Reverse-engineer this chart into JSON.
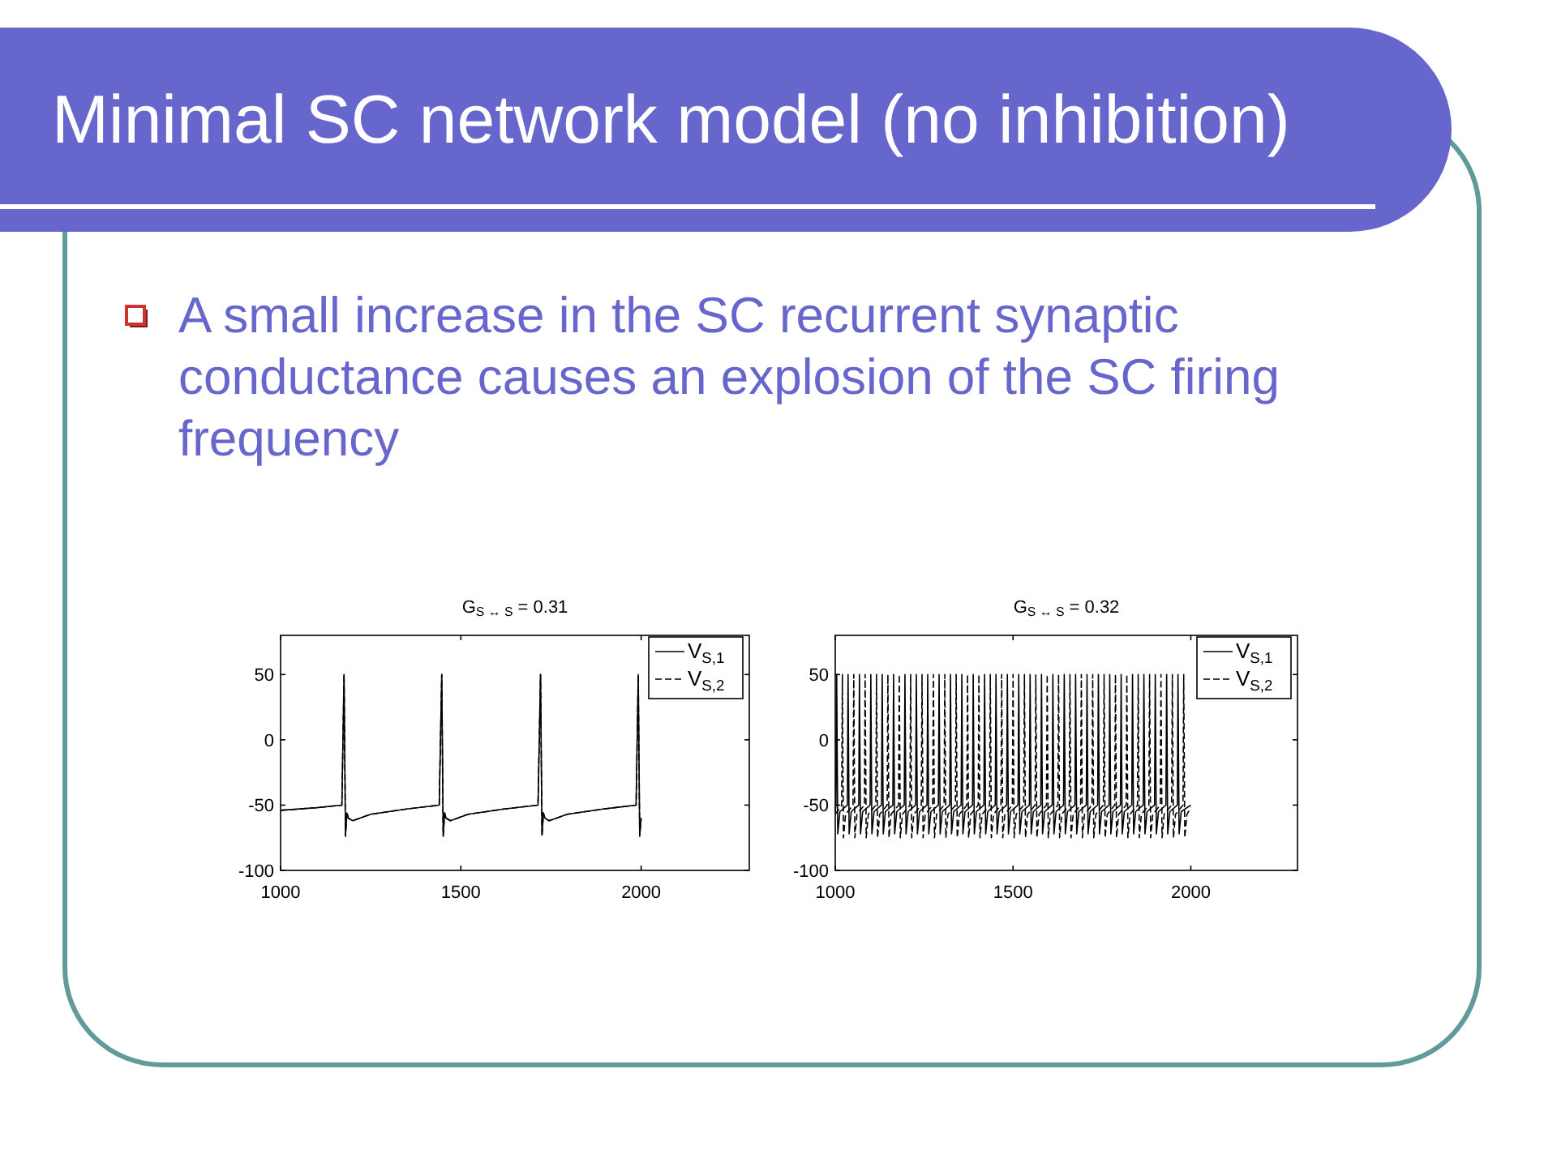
{
  "chart_data": [
    {
      "type": "line",
      "title": "G$_{S ↔ S}$ = 0.31",
      "annotations": [
        "Minimal SC network model (no inhibition)",
        "A small increase in the SC recurrent synaptic conductance causes an explosion of the SC firing frequency"
      ],
      "xlim": [
        1000,
        2300
      ],
      "xticks": [
        1000,
        1500,
        2000
      ],
      "ylim": [
        -100,
        80
      ],
      "yticks": [
        -100,
        -50,
        0,
        50
      ],
      "legend": "top right",
      "series": [
        {
          "name": "V$_{S,1}$",
          "color": "#000000",
          "line_style": "solid",
          "x": [
            1000,
            1100,
            1170,
            1176,
            1180,
            1184,
            1188,
            1200,
            1250,
            1350,
            1440,
            1447,
            1451,
            1455,
            1459,
            1471,
            1520,
            1620,
            1714,
            1721,
            1725,
            1729,
            1733,
            1745,
            1795,
            1895,
            1986,
            1992,
            1996,
            2000
          ],
          "values": [
            -54,
            -52,
            -50,
            50,
            -73,
            -56,
            -60,
            -62,
            -57,
            -53,
            -50,
            50,
            -73,
            -56,
            -60,
            -62,
            -57,
            -53,
            -50,
            50,
            -73,
            -56,
            -60,
            -62,
            -57,
            -53,
            -50,
            50,
            -73,
            -60
          ]
        },
        {
          "name": "V$_{S,2}$",
          "color": "#000000",
          "line_style": "dashed",
          "x": [
            1000,
            1100,
            1170,
            1176,
            1180,
            1184,
            1188,
            1200,
            1250,
            1350,
            1440,
            1447,
            1451,
            1455,
            1459,
            1471,
            1520,
            1620,
            1714,
            1721,
            1725,
            1729,
            1733,
            1745,
            1795,
            1895,
            1986,
            1992,
            1996,
            2000
          ],
          "values": [
            -54,
            -52,
            -50,
            50,
            -74,
            -56,
            -60,
            -62,
            -57,
            -53,
            -50,
            50,
            -74,
            -56,
            -60,
            -62,
            -57,
            -53,
            -50,
            50,
            -74,
            -56,
            -60,
            -62,
            -57,
            -53,
            -50,
            50,
            -74,
            -60
          ]
        }
      ]
    },
    {
      "type": "line",
      "title": "G$_{S ↔ S}$ = 0.32",
      "xlim": [
        1000,
        2300
      ],
      "xticks": [
        1000,
        1500,
        2000
      ],
      "ylim": [
        -100,
        80
      ],
      "yticks": [
        -100,
        -50,
        0,
        50
      ],
      "legend": "top right",
      "series": [
        {
          "name": "V$_{S,1}$",
          "color": "#000000",
          "line_style": "solid",
          "x": [
            1000,
            1002,
            1004,
            1007,
            1013,
            1034,
            1036,
            1039,
            1045,
            1066,
            1068,
            1071,
            1077,
            1098,
            1100,
            1103,
            1109,
            1130,
            1132,
            1135,
            1141,
            1162,
            1164,
            1167,
            1173,
            1194,
            1196,
            1199,
            1205,
            1226,
            1228,
            1231,
            1237,
            1258,
            1260,
            1263,
            1269,
            1290,
            1292,
            1295,
            1301,
            1322,
            1324,
            1327,
            1333,
            1354,
            1356,
            1359,
            1365,
            1386,
            1388,
            1391,
            1397,
            1418,
            1420,
            1423,
            1429,
            1450,
            1452,
            1455,
            1461,
            1482,
            1484,
            1487,
            1493,
            1514,
            1516,
            1519,
            1525,
            1546,
            1548,
            1551,
            1557,
            1578,
            1580,
            1583,
            1589,
            1610,
            1612,
            1615,
            1621,
            1642,
            1644,
            1647,
            1653,
            1674,
            1676,
            1679,
            1685,
            1706,
            1708,
            1711,
            1717,
            1738,
            1740,
            1743,
            1749,
            1770,
            1772,
            1775,
            1781,
            1802,
            1804,
            1807,
            1813,
            1834,
            1836,
            1839,
            1845,
            1866,
            1868,
            1871,
            1877,
            1898,
            1900,
            1903,
            1909,
            1930,
            1932,
            1935,
            1941,
            1962,
            1964,
            1967,
            1973,
            2000
          ],
          "values": [
            -55,
            -50,
            50,
            -72,
            -55,
            -50,
            50,
            -72,
            -55,
            -50,
            50,
            -72,
            -55,
            -50,
            50,
            -72,
            -55,
            -50,
            50,
            -72,
            -55,
            -50,
            50,
            -72,
            -55,
            -50,
            50,
            -72,
            -55,
            -50,
            50,
            -72,
            -55,
            -50,
            50,
            -72,
            -55,
            -50,
            50,
            -72,
            -55,
            -50,
            50,
            -72,
            -55,
            -50,
            50,
            -72,
            -55,
            -50,
            50,
            -72,
            -55,
            -50,
            50,
            -72,
            -55,
            -50,
            50,
            -72,
            -55,
            -50,
            50,
            -72,
            -55,
            -50,
            50,
            -72,
            -55,
            -50,
            50,
            -72,
            -55,
            -50,
            50,
            -72,
            -55,
            -50,
            50,
            -72,
            -55,
            -50,
            50,
            -72,
            -55,
            -50,
            50,
            -72,
            -55,
            -50,
            50,
            -72,
            -55,
            -50,
            50,
            -72,
            -55,
            -50,
            50,
            -72,
            -55,
            -50,
            50,
            -72,
            -55,
            -50,
            50,
            -72,
            -55,
            -50,
            50,
            -72,
            -55,
            -50,
            50,
            -72,
            -55,
            -50,
            50,
            -72,
            -55,
            -50,
            50,
            -72,
            -55,
            -50
          ]
        },
        {
          "name": "V$_{S,2}$",
          "color": "#000000",
          "line_style": "dashed",
          "x": [
            1000,
            1018,
            1020,
            1023,
            1029,
            1050,
            1052,
            1055,
            1061,
            1082,
            1084,
            1087,
            1093,
            1114,
            1116,
            1119,
            1125,
            1146,
            1148,
            1151,
            1157,
            1178,
            1180,
            1183,
            1189,
            1210,
            1212,
            1215,
            1221,
            1242,
            1244,
            1247,
            1253,
            1274,
            1276,
            1279,
            1285,
            1306,
            1308,
            1311,
            1317,
            1338,
            1340,
            1343,
            1349,
            1370,
            1372,
            1375,
            1381,
            1402,
            1404,
            1407,
            1413,
            1434,
            1436,
            1439,
            1445,
            1466,
            1468,
            1471,
            1477,
            1498,
            1500,
            1503,
            1509,
            1530,
            1532,
            1535,
            1541,
            1562,
            1564,
            1567,
            1573,
            1594,
            1596,
            1599,
            1605,
            1626,
            1628,
            1631,
            1637,
            1658,
            1660,
            1663,
            1669,
            1690,
            1692,
            1695,
            1701,
            1722,
            1724,
            1727,
            1733,
            1754,
            1756,
            1759,
            1765,
            1786,
            1788,
            1791,
            1797,
            1818,
            1820,
            1823,
            1829,
            1850,
            1852,
            1855,
            1861,
            1882,
            1884,
            1887,
            1893,
            1914,
            1916,
            1919,
            1925,
            1946,
            1948,
            1951,
            1957,
            1978,
            1980,
            1983,
            1989,
            2000
          ],
          "values": [
            -57,
            -50,
            50,
            -75,
            -57,
            -50,
            50,
            -75,
            -57,
            -50,
            50,
            -75,
            -57,
            -50,
            50,
            -75,
            -57,
            -50,
            50,
            -75,
            -57,
            -50,
            50,
            -75,
            -57,
            -50,
            50,
            -75,
            -57,
            -50,
            50,
            -75,
            -57,
            -50,
            50,
            -75,
            -57,
            -50,
            50,
            -75,
            -57,
            -50,
            50,
            -75,
            -57,
            -50,
            50,
            -75,
            -57,
            -50,
            50,
            -75,
            -57,
            -50,
            50,
            -75,
            -57,
            -50,
            50,
            -75,
            -57,
            -50,
            50,
            -75,
            -57,
            -50,
            50,
            -75,
            -57,
            -50,
            50,
            -75,
            -57,
            -50,
            50,
            -75,
            -57,
            -50,
            50,
            -75,
            -57,
            -50,
            50,
            -75,
            -57,
            -50,
            50,
            -75,
            -57,
            -50,
            50,
            -75,
            -57,
            -50,
            50,
            -75,
            -57,
            -50,
            50,
            -75,
            -57,
            -50,
            50,
            -75,
            -57,
            -50,
            50,
            -75,
            -57,
            -50,
            50,
            -75,
            -57,
            -50,
            50,
            -75,
            -57,
            -50,
            50,
            -75,
            -57,
            -50,
            50,
            -75,
            -57,
            -52
          ]
        }
      ]
    }
  ]
}
